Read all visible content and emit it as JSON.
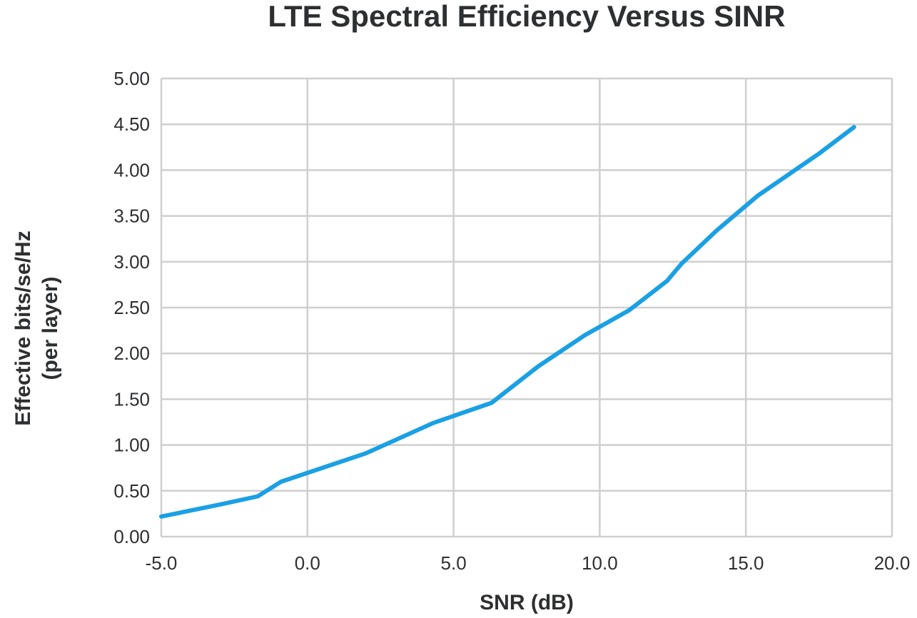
{
  "chart_data": {
    "type": "line",
    "title": "LTE Spectral Efficiency Versus SINR",
    "xlabel": "SNR (dB)",
    "ylabel_lines": [
      "Effective bits/se/Hz",
      "(per layer)"
    ],
    "xlim": [
      -5,
      20
    ],
    "ylim": [
      0,
      5
    ],
    "x_ticks": [
      -5,
      0,
      5,
      10,
      15,
      20
    ],
    "x_tick_labels": [
      "-5.0",
      "0.0",
      "5.0",
      "10.0",
      "15.0",
      "20.0"
    ],
    "y_ticks": [
      0,
      0.5,
      1,
      1.5,
      2,
      2.5,
      3,
      3.5,
      4,
      4.5,
      5
    ],
    "y_tick_labels": [
      "0.00",
      "0.50",
      "1.00",
      "1.50",
      "2.00",
      "2.50",
      "3.00",
      "3.50",
      "4.00",
      "4.50",
      "5.00"
    ],
    "grid": true,
    "series": [
      {
        "name": "LTE",
        "color": "#1aa0e4",
        "x": [
          -5.0,
          -3.0,
          -1.7,
          -0.9,
          2.0,
          4.3,
          6.3,
          7.9,
          9.5,
          11.0,
          12.3,
          12.8,
          14.0,
          15.4,
          17.5,
          18.7
        ],
        "y": [
          0.22,
          0.35,
          0.44,
          0.6,
          0.91,
          1.24,
          1.46,
          1.86,
          2.2,
          2.47,
          2.79,
          2.98,
          3.34,
          3.72,
          4.18,
          4.47
        ]
      }
    ]
  }
}
